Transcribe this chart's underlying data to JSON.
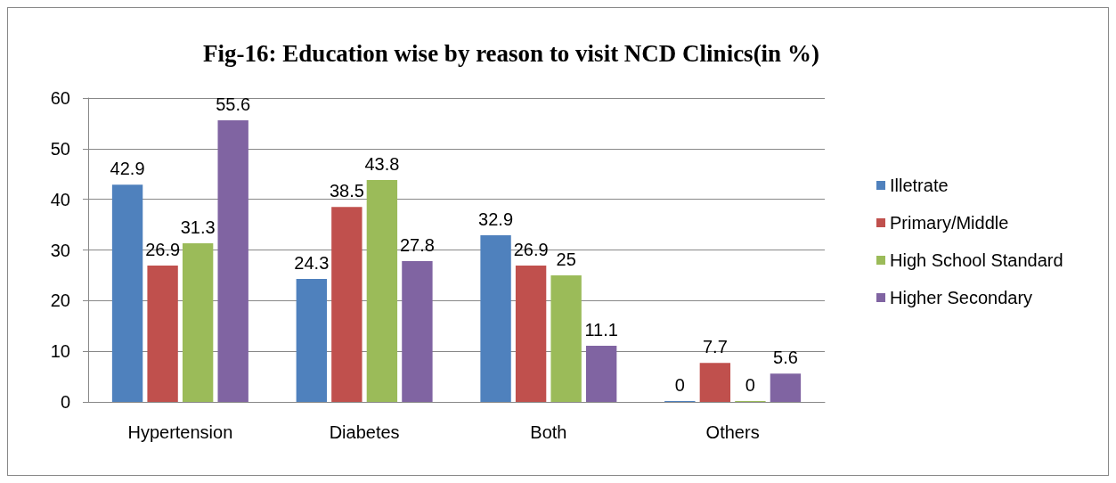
{
  "chart_data": {
    "type": "bar",
    "title": "Fig-16: Education wise by reason to visit NCD Clinics(in %)",
    "categories": [
      "Hypertension",
      "Diabetes",
      "Both",
      "Others"
    ],
    "series": [
      {
        "name": "Illetrate",
        "color": "#4f81bd",
        "values": [
          42.9,
          24.3,
          32.9,
          0
        ]
      },
      {
        "name": "Primary/Middle",
        "color": "#c0504d",
        "values": [
          26.9,
          38.5,
          26.9,
          7.7
        ]
      },
      {
        "name": "High School Standard",
        "color": "#9bbb59",
        "values": [
          31.3,
          43.8,
          25,
          0
        ]
      },
      {
        "name": "Higher Secondary",
        "color": "#8064a2",
        "values": [
          55.6,
          27.8,
          11.1,
          5.6
        ]
      }
    ],
    "ylim": [
      0,
      60
    ],
    "yticks": [
      0,
      10,
      20,
      30,
      40,
      50,
      60
    ],
    "grid": "y",
    "legend": "right",
    "data_labels": true
  }
}
